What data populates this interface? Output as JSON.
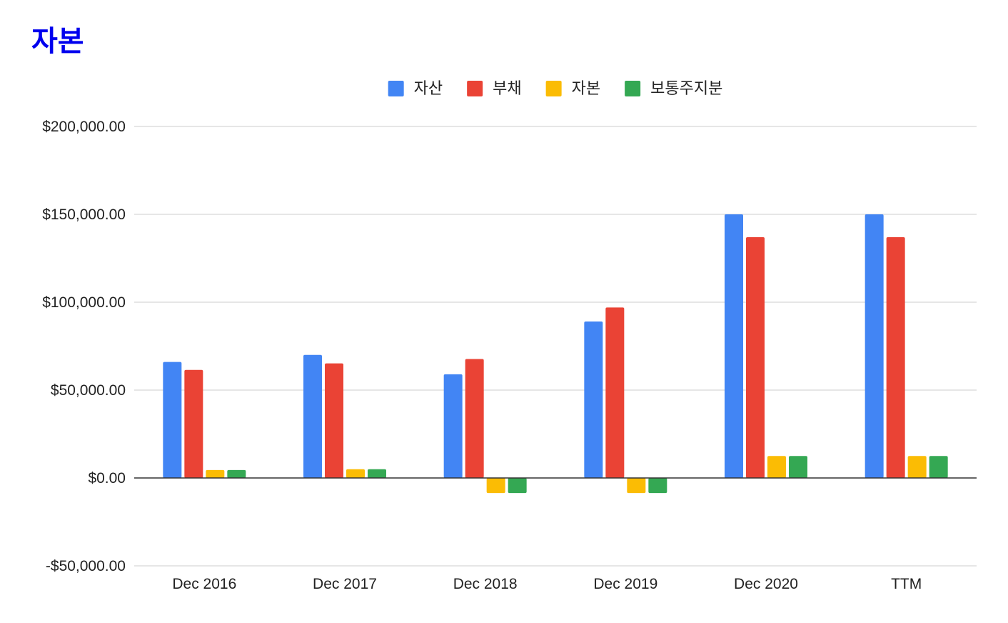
{
  "page": {
    "title": "자본"
  },
  "chart_data": {
    "type": "bar",
    "title": "자본",
    "xlabel": "",
    "ylabel": "",
    "ylim": [
      -50000,
      200000
    ],
    "yticks": [
      -50000,
      0,
      50000,
      100000,
      150000,
      200000
    ],
    "ytick_labels": [
      "-$50,000.00",
      "$0.00",
      "$50,000.00",
      "$100,000.00",
      "$150,000.00",
      "$200,000.00"
    ],
    "grid": true,
    "legend_position": "top-center",
    "categories": [
      "Dec 2016",
      "Dec 2017",
      "Dec 2018",
      "Dec 2019",
      "Dec 2020",
      "TTM"
    ],
    "series": [
      {
        "name": "자산",
        "color": "#4285f4",
        "values": [
          66000,
          70000,
          59000,
          89000,
          150000,
          150000
        ]
      },
      {
        "name": "부채",
        "color": "#ea4335",
        "values": [
          61500,
          65200,
          67700,
          97000,
          137000,
          137000
        ]
      },
      {
        "name": "자본",
        "color": "#fbbc04",
        "values": [
          4500,
          5000,
          -8600,
          -8600,
          12500,
          12500
        ]
      },
      {
        "name": "보통주지분",
        "color": "#34a853",
        "values": [
          4500,
          5000,
          -8600,
          -8600,
          12500,
          12500
        ]
      }
    ]
  }
}
